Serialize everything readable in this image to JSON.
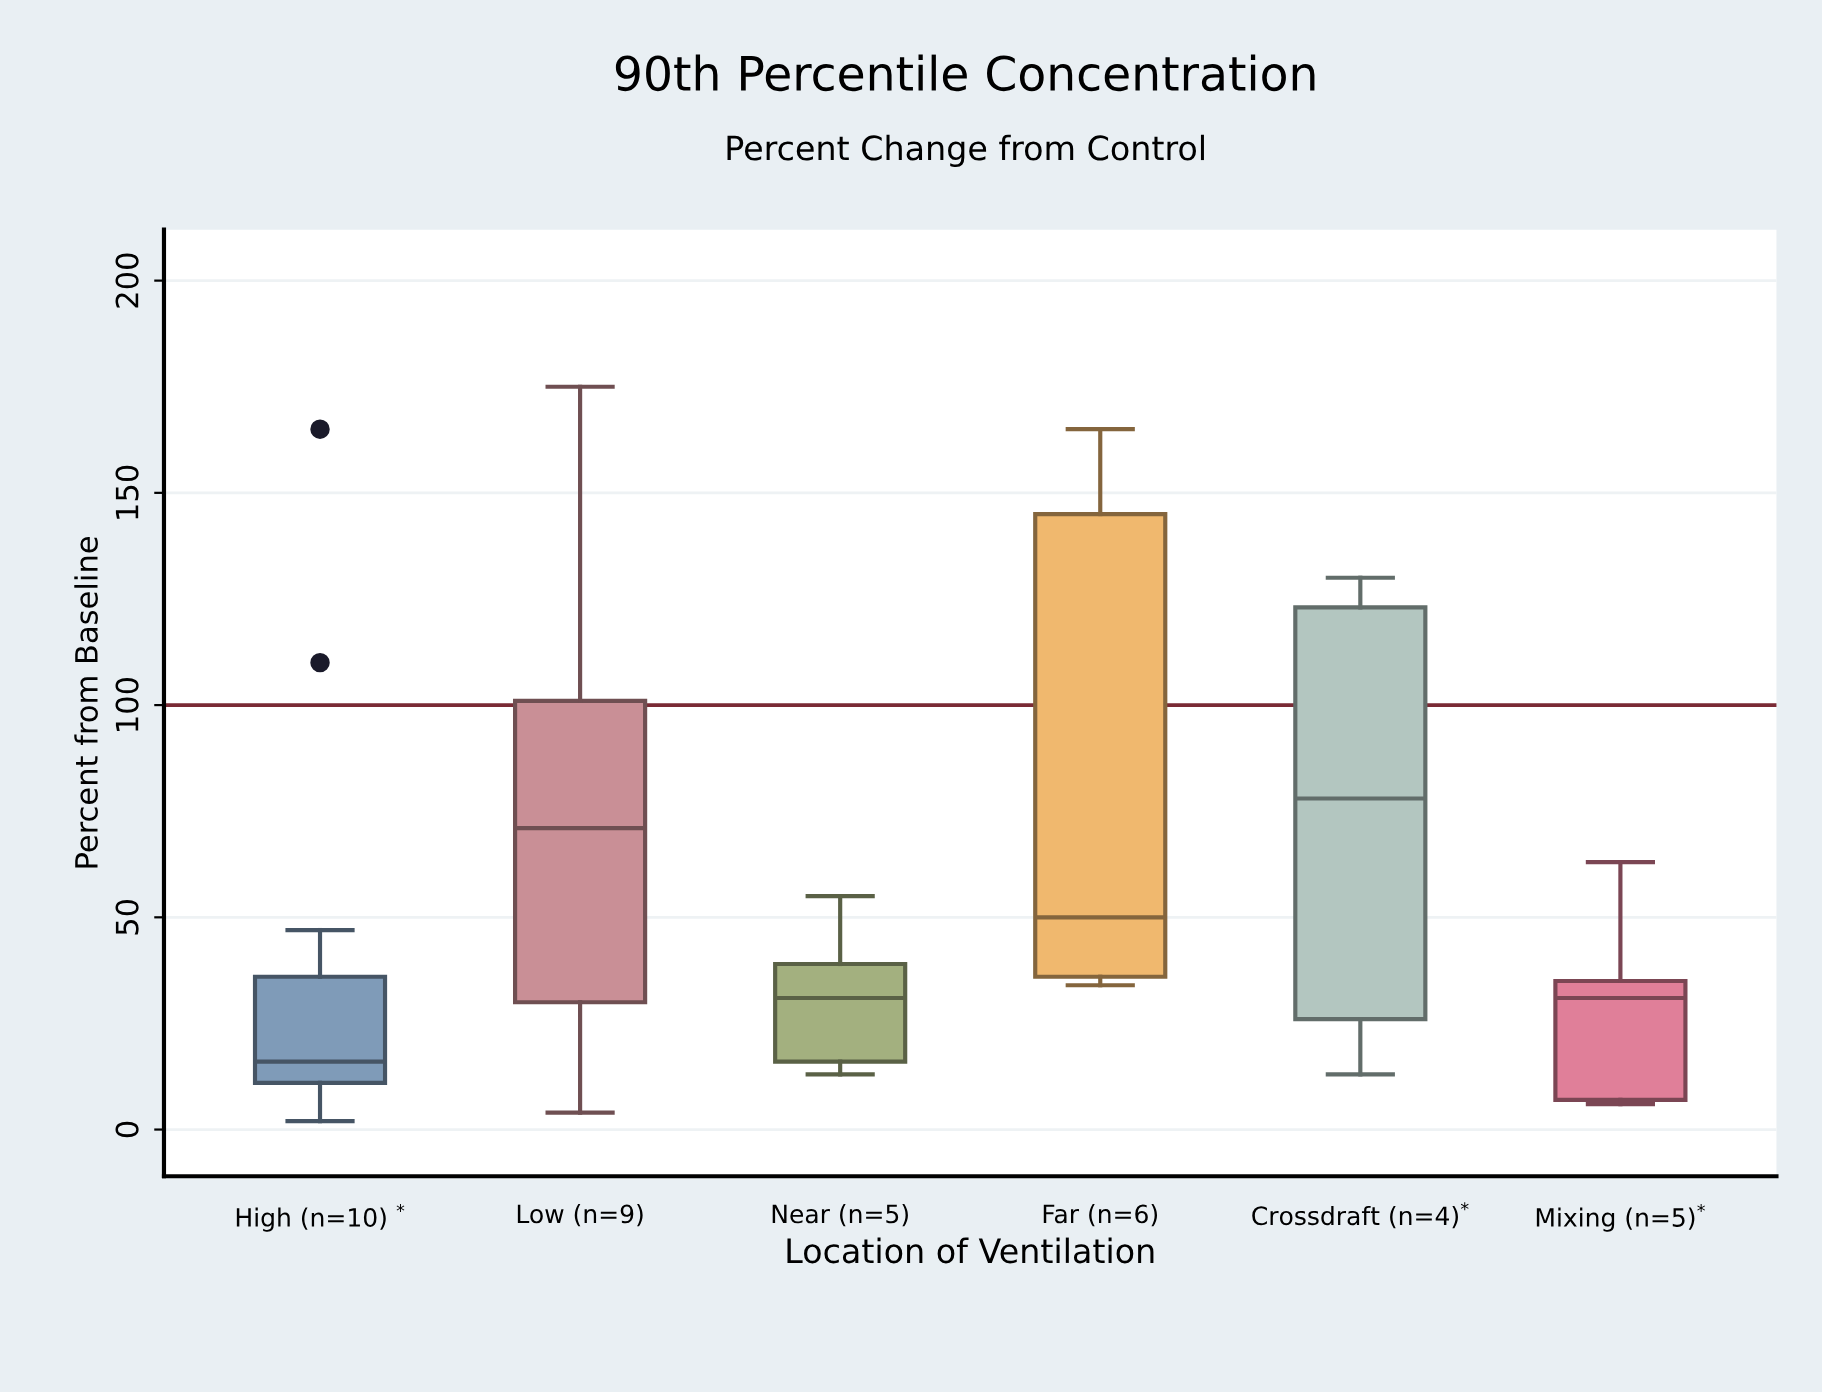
{
  "chart_data": {
    "type": "box",
    "title": "90th Percentile Concentration",
    "subtitle": "Percent Change from Control",
    "xlabel": "Location of Ventilation",
    "ylabel": "Percent from Baseline",
    "categories": [
      "High (n=10) $^{*}$",
      "Low (n=9)",
      "Near (n=5)",
      "Far (n=6)",
      "Crossdraft (n=4)$^{*}$",
      "Mixing (n=5)$^{*}$"
    ],
    "colors": [
      "#7f9bb8",
      "#c98f96",
      "#a3b07f",
      "#f0b86e",
      "#b3c6c0",
      "#e07f99"
    ],
    "boxes": [
      {
        "low": 2,
        "q1": 11,
        "median": 16,
        "q3": 36,
        "high": 47,
        "outliers": [
          110,
          165
        ]
      },
      {
        "low": 4,
        "q1": 30,
        "median": 71,
        "q3": 101,
        "high": 175
      },
      {
        "low": 13,
        "q1": 16,
        "median": 31,
        "q3": 39,
        "high": 55
      },
      {
        "low": 34,
        "q1": 36,
        "median": 50,
        "q3": 145,
        "high": 165
      },
      {
        "low": 13,
        "q1": 26,
        "median": 78,
        "q3": 123,
        "high": 130
      },
      {
        "low": 6,
        "q1": 7,
        "median": 31,
        "q3": 35,
        "high": 63
      }
    ],
    "ylim": [
      -11,
      212
    ],
    "yticks": [
      0,
      50,
      100,
      150,
      200
    ],
    "grid": "y",
    "ref_lines": [
      {
        "axis": "y",
        "value": 100,
        "color": "#7a2a35"
      }
    ]
  }
}
